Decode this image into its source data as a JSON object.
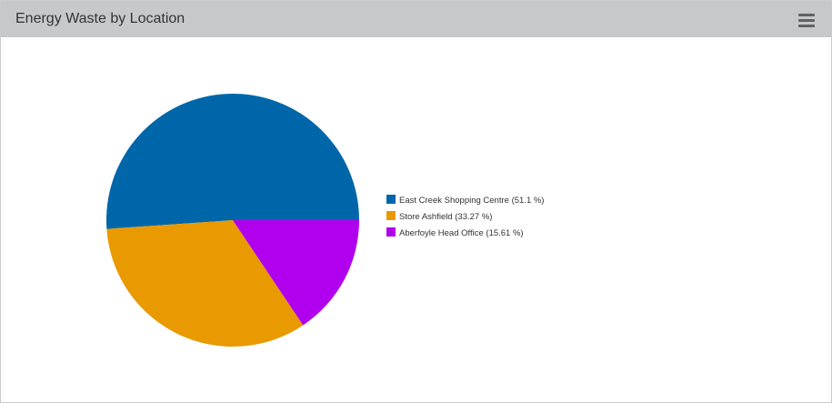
{
  "header": {
    "title": "Energy Waste by Location",
    "menu_icon": "hamburger-menu-icon"
  },
  "chart_data": {
    "type": "pie",
    "title": "Energy Waste by Location",
    "categories": [
      "East Creek Shopping Centre",
      "Store Ashfield",
      "Aberfoyle Head Office"
    ],
    "values": [
      51.1,
      33.27,
      15.61
    ],
    "legend_labels": [
      "East Creek Shopping Centre (51.1 %)",
      "Store Ashfield (33.27 %)",
      "Aberfoyle Head Office (15.61 %)"
    ],
    "colors": [
      "#0066aa",
      "#e89a00",
      "#b000ee"
    ],
    "legend_position": "right"
  }
}
